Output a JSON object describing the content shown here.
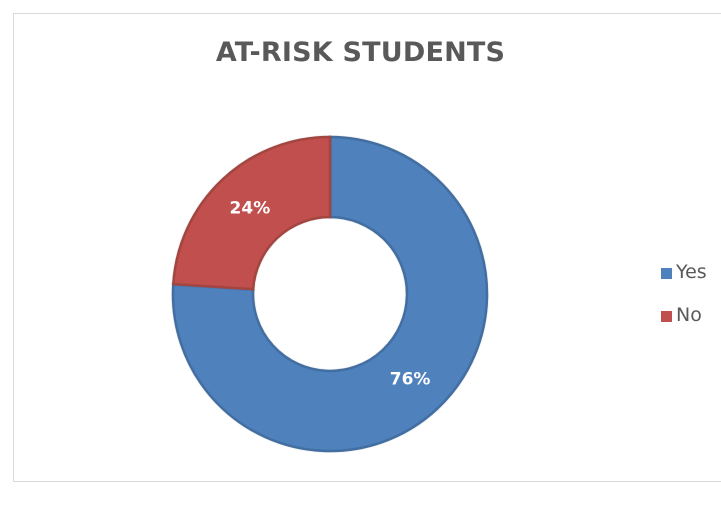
{
  "chart_data": {
    "type": "pie",
    "variant": "donut",
    "title": "AT-RISK STUDENTS",
    "categories": [
      "Yes",
      "No"
    ],
    "values": [
      76,
      24
    ],
    "value_labels": [
      "76%",
      "24%"
    ],
    "colors": [
      "#4F81BD",
      "#C0504D"
    ],
    "legend_position": "right",
    "start_angle_deg": 0,
    "direction": "clockwise"
  }
}
